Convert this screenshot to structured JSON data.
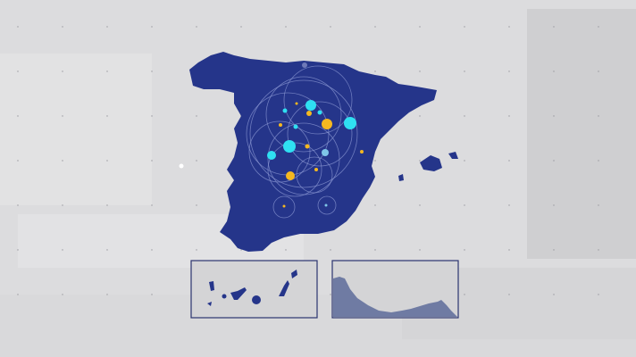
{
  "map": {
    "region": "Spain",
    "land_color": "#25358a",
    "background_color": "#d9d9db",
    "inset_border_color": "#2b3470",
    "marker_colors": {
      "cyan": "#2fe0f2",
      "yellow": "#f5b820",
      "light_blue": "#7fc6e8"
    },
    "insets": [
      "canary-islands",
      "ceuta-melilla-coast"
    ]
  }
}
